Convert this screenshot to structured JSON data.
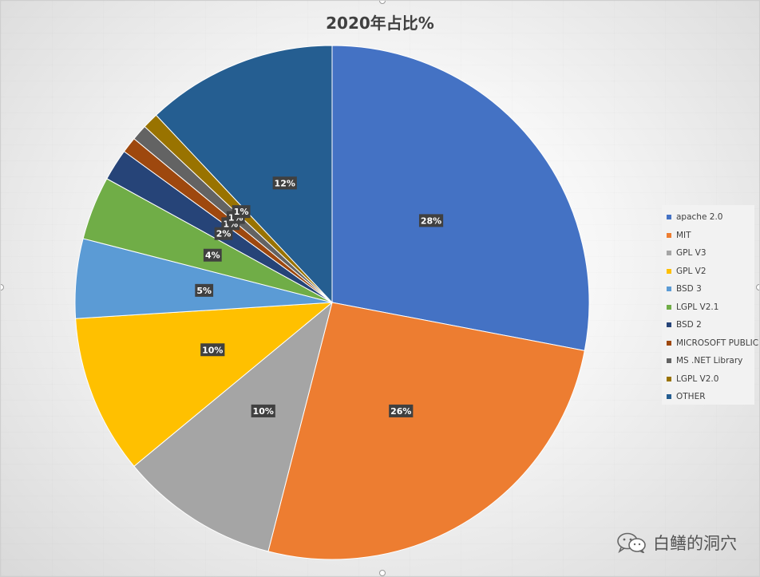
{
  "chart_data": {
    "type": "pie",
    "title": "2020年占比%",
    "categories": [
      "apache 2.0",
      "MIT",
      "GPL V3",
      "GPL V2",
      "BSD 3",
      "LGPL V2.1",
      "BSD 2",
      "MICROSOFT PUBLIC",
      "MS .NET Library",
      "LGPL V2.0",
      "OTHER"
    ],
    "values": [
      28,
      26,
      10,
      10,
      5,
      4,
      2,
      1,
      1,
      1,
      12
    ],
    "labels": [
      "28%",
      "26%",
      "10%",
      "10%",
      "5%",
      "4%",
      "2%",
      "1%",
      "1%",
      "1%",
      "12%"
    ],
    "colors": [
      "#4472C4",
      "#ED7D31",
      "#A5A5A5",
      "#FFC000",
      "#5B9BD5",
      "#70AD47",
      "#264478",
      "#9E480E",
      "#636363",
      "#997300",
      "#255E91"
    ],
    "legend_position": "right",
    "grid": false
  },
  "watermark": {
    "text": "白鳝的洞穴",
    "icon": "wechat-icon"
  }
}
